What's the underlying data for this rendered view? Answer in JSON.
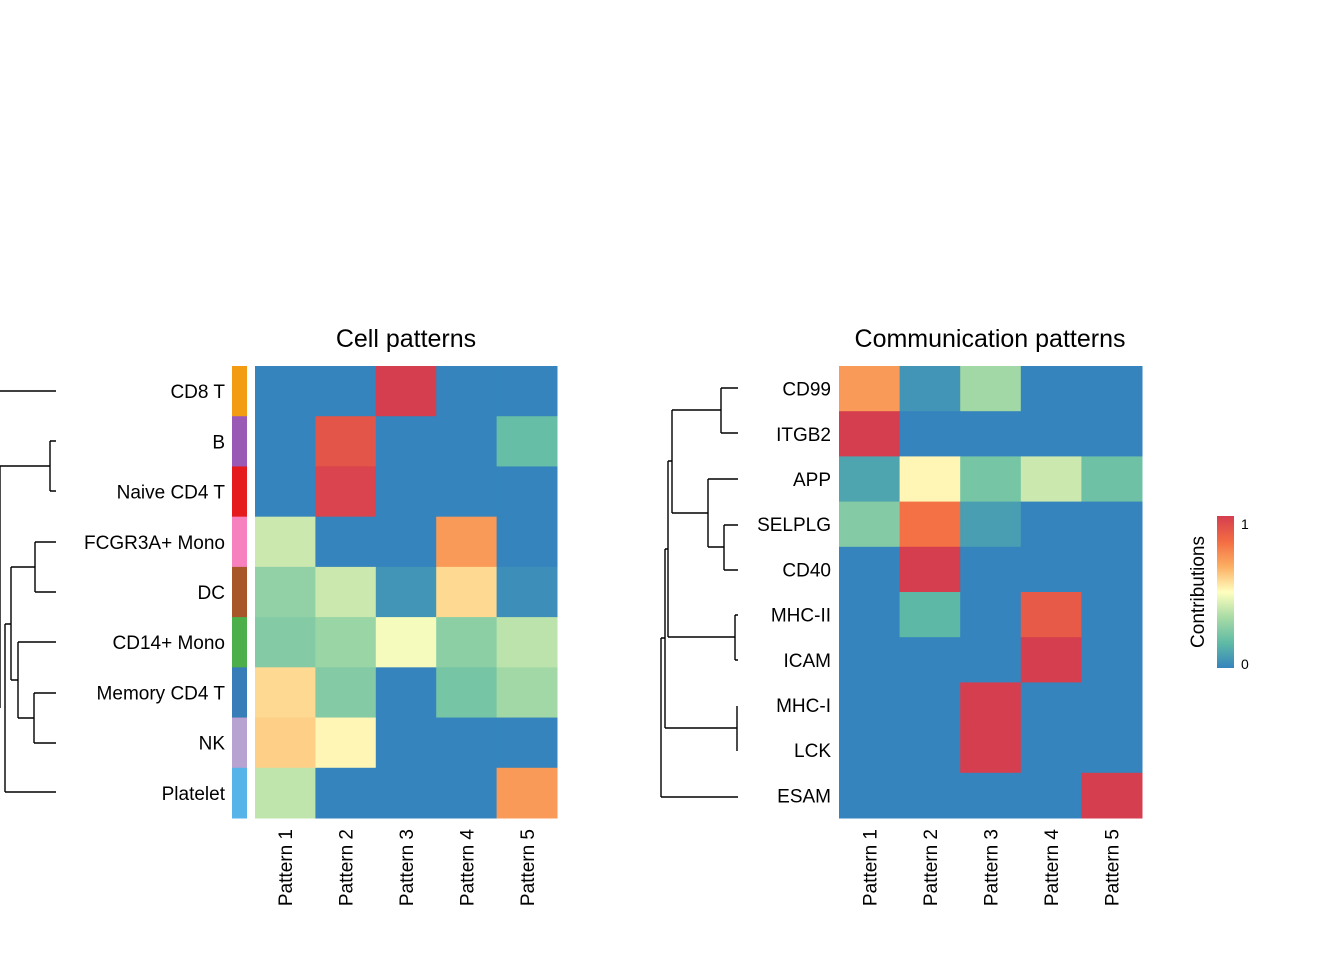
{
  "chart_data": [
    {
      "type": "heatmap",
      "title": "Cell patterns",
      "rows": [
        "CD8 T",
        "B",
        "Naive CD4 T",
        "FCGR3A+ Mono",
        "DC",
        "CD14+ Mono",
        "Memory CD4 T",
        "NK",
        "Platelet"
      ],
      "row_colors": [
        "#F39C12",
        "#9B59B6",
        "#E41A1C",
        "#F781BF",
        "#A65628",
        "#4DAF4A",
        "#377EB8",
        "#B8A2D2",
        "#56B4E9"
      ],
      "columns": [
        "Pattern 1",
        "Pattern 2",
        "Pattern 3",
        "Pattern 4",
        "Pattern 5"
      ],
      "values": [
        [
          0,
          0,
          1,
          0,
          0
        ],
        [
          0,
          0.92,
          0,
          0,
          0.18
        ],
        [
          0,
          0.98,
          0,
          0,
          0
        ],
        [
          0.4,
          0,
          0,
          0.72,
          0
        ],
        [
          0.28,
          0.4,
          0.05,
          0.58,
          0.03
        ],
        [
          0.25,
          0.3,
          0.48,
          0.27,
          0.37
        ],
        [
          0.58,
          0.25,
          0,
          0.22,
          0.32
        ],
        [
          0.6,
          0.52,
          0,
          0,
          0
        ],
        [
          0.38,
          0,
          0,
          0,
          0.72
        ]
      ]
    },
    {
      "type": "heatmap",
      "title": "Communication patterns",
      "rows": [
        "CD99",
        "ITGB2",
        "APP",
        "SELPLG",
        "CD40",
        "MHC-II",
        "ICAM",
        "MHC-I",
        "LCK",
        "ESAM"
      ],
      "columns": [
        "Pattern 1",
        "Pattern 2",
        "Pattern 3",
        "Pattern 4",
        "Pattern 5"
      ],
      "values": [
        [
          0.72,
          0.05,
          0.32,
          0,
          0
        ],
        [
          1,
          0,
          0,
          0,
          0
        ],
        [
          0.1,
          0.52,
          0.22,
          0.4,
          0.2
        ],
        [
          0.25,
          0.82,
          0.08,
          0,
          0
        ],
        [
          0,
          1,
          0,
          0,
          0
        ],
        [
          0,
          0.16,
          0,
          0.9,
          0
        ],
        [
          0,
          0,
          0,
          1,
          0
        ],
        [
          0,
          0,
          1,
          0,
          0
        ],
        [
          0,
          0,
          1,
          0,
          0
        ],
        [
          0,
          0,
          0,
          0,
          1
        ]
      ]
    }
  ],
  "legend": {
    "title": "Contributions",
    "max_label": "1",
    "min_label": "0",
    "colors": [
      "#3584BD",
      "#5FBBA5",
      "#A8DBA5",
      "#FFFFBF",
      "#FCAF62",
      "#F36C43",
      "#D53E4F"
    ]
  }
}
